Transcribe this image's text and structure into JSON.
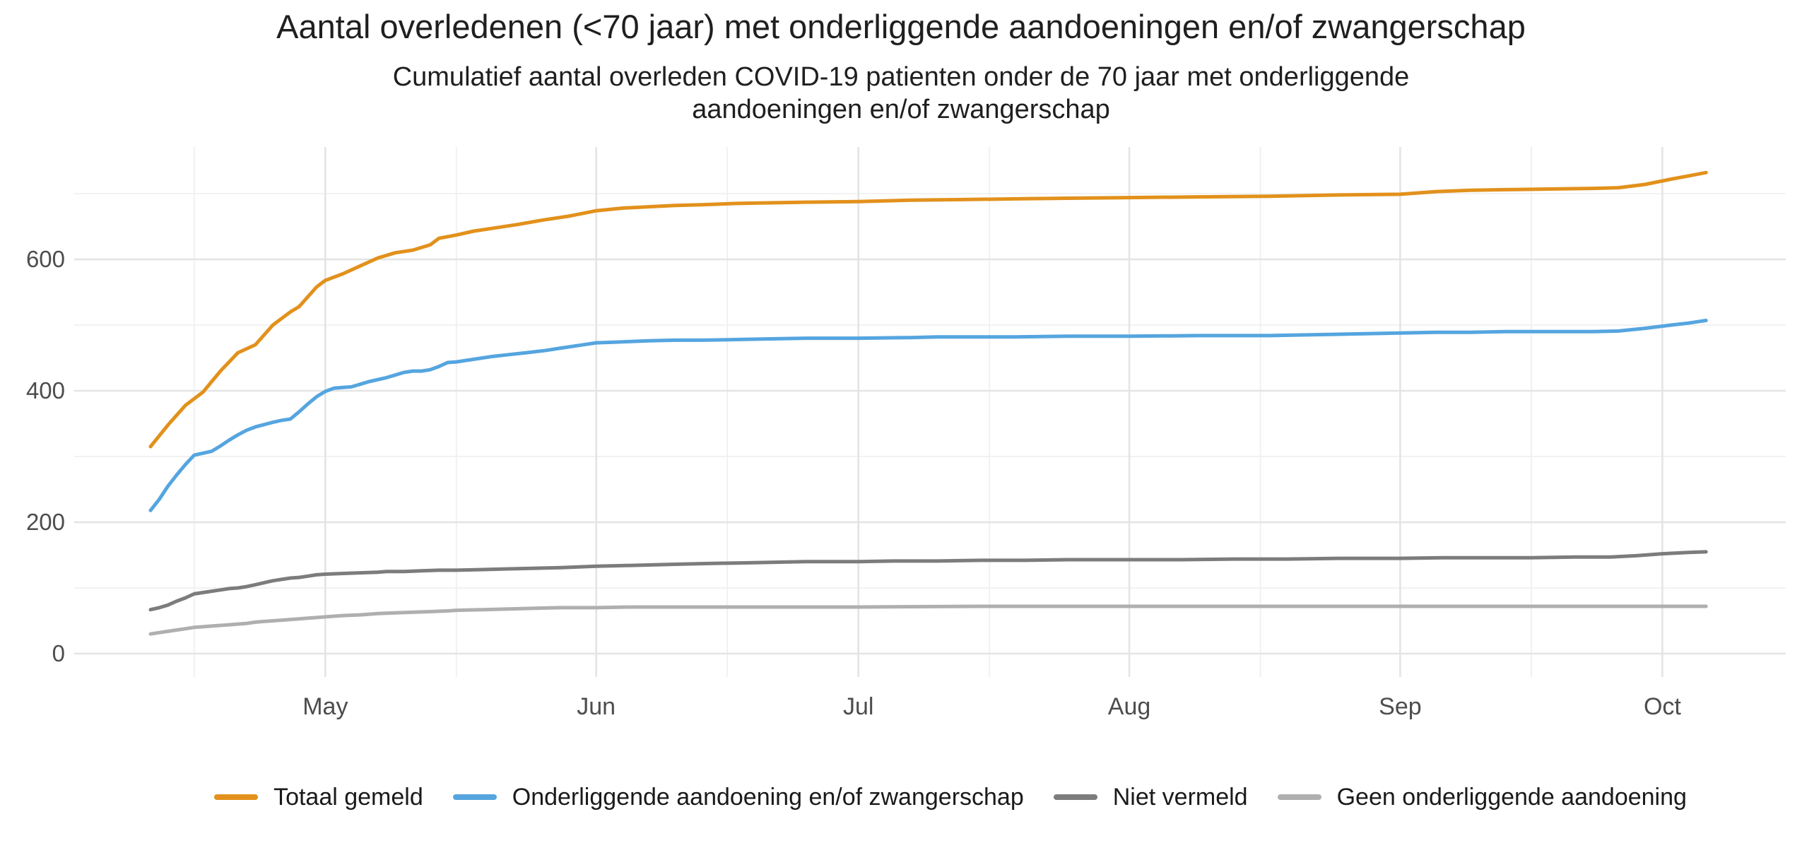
{
  "page": {
    "background": "#FFFFFF"
  },
  "title": "Aantal overledenen (<70 jaar) met onderliggende aandoeningen en/of zwangerschap",
  "subtitle_line1": "Cumulatief aantal overleden COVID-19 patienten onder de 70 jaar met onderliggende",
  "subtitle_line2": "aandoeningen en/of zwangerschap",
  "chart_data": {
    "type": "line",
    "title": "Aantal overledenen (<70 jaar) met onderliggende aandoeningen en/of zwangerschap",
    "subtitle": "Cumulatief aantal overleden COVID-19 patienten onder de 70 jaar met onderliggende aandoeningen en/of zwangerschap",
    "x_unit": "days since Apr 11",
    "x_axis": {
      "ticks": [
        {
          "label": "May",
          "day": 20
        },
        {
          "label": "Jun",
          "day": 51
        },
        {
          "label": "Jul",
          "day": 81
        },
        {
          "label": "Aug",
          "day": 112
        },
        {
          "label": "Sep",
          "day": 143
        },
        {
          "label": "Oct",
          "day": 173
        }
      ],
      "minor_days": [
        5,
        35,
        66,
        96,
        127,
        158
      ],
      "data_range_days": [
        0,
        178
      ]
    },
    "y_axis": {
      "ticks": [
        {
          "label": "0",
          "value": 0
        },
        {
          "label": "200",
          "value": 200
        },
        {
          "label": "400",
          "value": 400
        },
        {
          "label": "600",
          "value": 600
        }
      ],
      "minor_ticks": [
        100,
        300,
        500,
        700
      ],
      "range": [
        -35,
        770
      ]
    },
    "grid": {
      "major_color": "#E4E4E4",
      "minor_color": "#F0F0F0"
    },
    "legend_position": "bottom",
    "series": [
      {
        "name": "Totaal gemeld",
        "color": "#E2911C",
        "points": [
          [
            0,
            315
          ],
          [
            2,
            348
          ],
          [
            4,
            378
          ],
          [
            6,
            398
          ],
          [
            8,
            430
          ],
          [
            10,
            458
          ],
          [
            12,
            470
          ],
          [
            14,
            500
          ],
          [
            16,
            520
          ],
          [
            17,
            528
          ],
          [
            19,
            558
          ],
          [
            20,
            568
          ],
          [
            22,
            578
          ],
          [
            24,
            590
          ],
          [
            26,
            602
          ],
          [
            28,
            610
          ],
          [
            30,
            614
          ],
          [
            32,
            622
          ],
          [
            33,
            632
          ],
          [
            35,
            637
          ],
          [
            37,
            643
          ],
          [
            39,
            647
          ],
          [
            42,
            653
          ],
          [
            45,
            660
          ],
          [
            48,
            666
          ],
          [
            51,
            674
          ],
          [
            54,
            678
          ],
          [
            57,
            680
          ],
          [
            60,
            682
          ],
          [
            63,
            683
          ],
          [
            67,
            685
          ],
          [
            71,
            686
          ],
          [
            75,
            687
          ],
          [
            81,
            688
          ],
          [
            87,
            690
          ],
          [
            93,
            691
          ],
          [
            99,
            692
          ],
          [
            105,
            693
          ],
          [
            112,
            694
          ],
          [
            120,
            695
          ],
          [
            128,
            696
          ],
          [
            136,
            698
          ],
          [
            143,
            699
          ],
          [
            147,
            703
          ],
          [
            151,
            705
          ],
          [
            155,
            706
          ],
          [
            160,
            707
          ],
          [
            165,
            708
          ],
          [
            168,
            709
          ],
          [
            171,
            714
          ],
          [
            174,
            722
          ],
          [
            176,
            727
          ],
          [
            178,
            732
          ]
        ]
      },
      {
        "name": "Onderliggende aandoening en/of zwangerschap",
        "color": "#55A5DF",
        "points": [
          [
            0,
            218
          ],
          [
            1,
            235
          ],
          [
            2,
            255
          ],
          [
            3,
            272
          ],
          [
            4,
            288
          ],
          [
            5,
            302
          ],
          [
            7,
            308
          ],
          [
            8,
            316
          ],
          [
            9,
            325
          ],
          [
            10,
            333
          ],
          [
            11,
            340
          ],
          [
            12,
            345
          ],
          [
            14,
            352
          ],
          [
            15,
            355
          ],
          [
            16,
            357
          ],
          [
            17,
            368
          ],
          [
            18,
            380
          ],
          [
            19,
            391
          ],
          [
            20,
            399
          ],
          [
            21,
            404
          ],
          [
            23,
            406
          ],
          [
            24,
            410
          ],
          [
            25,
            414
          ],
          [
            27,
            420
          ],
          [
            28,
            424
          ],
          [
            29,
            428
          ],
          [
            30,
            430
          ],
          [
            31,
            430
          ],
          [
            32,
            432
          ],
          [
            33,
            437
          ],
          [
            34,
            443
          ],
          [
            35,
            444
          ],
          [
            37,
            448
          ],
          [
            39,
            452
          ],
          [
            41,
            455
          ],
          [
            43,
            458
          ],
          [
            45,
            461
          ],
          [
            47,
            465
          ],
          [
            49,
            469
          ],
          [
            51,
            473
          ],
          [
            53,
            474
          ],
          [
            55,
            475
          ],
          [
            57,
            476
          ],
          [
            60,
            477
          ],
          [
            63,
            477
          ],
          [
            67,
            478
          ],
          [
            71,
            479
          ],
          [
            75,
            480
          ],
          [
            81,
            480
          ],
          [
            87,
            481
          ],
          [
            90,
            482
          ],
          [
            99,
            482
          ],
          [
            105,
            483
          ],
          [
            112,
            483
          ],
          [
            120,
            484
          ],
          [
            128,
            484
          ],
          [
            136,
            486
          ],
          [
            143,
            488
          ],
          [
            147,
            489
          ],
          [
            151,
            489
          ],
          [
            155,
            490
          ],
          [
            165,
            490
          ],
          [
            168,
            491
          ],
          [
            171,
            495
          ],
          [
            174,
            500
          ],
          [
            176,
            503
          ],
          [
            178,
            507
          ]
        ]
      },
      {
        "name": "Niet vermeld",
        "color": "#7C7C7C",
        "points": [
          [
            0,
            67
          ],
          [
            1,
            70
          ],
          [
            2,
            74
          ],
          [
            3,
            80
          ],
          [
            4,
            85
          ],
          [
            5,
            91
          ],
          [
            6,
            93
          ],
          [
            7,
            95
          ],
          [
            8,
            97
          ],
          [
            9,
            99
          ],
          [
            10,
            100
          ],
          [
            11,
            102
          ],
          [
            12,
            105
          ],
          [
            13,
            108
          ],
          [
            14,
            111
          ],
          [
            15,
            113
          ],
          [
            16,
            115
          ],
          [
            17,
            116
          ],
          [
            18,
            118
          ],
          [
            19,
            120
          ],
          [
            20,
            121
          ],
          [
            22,
            122
          ],
          [
            24,
            123
          ],
          [
            26,
            124
          ],
          [
            27,
            125
          ],
          [
            29,
            125
          ],
          [
            31,
            126
          ],
          [
            33,
            127
          ],
          [
            35,
            127
          ],
          [
            38,
            128
          ],
          [
            41,
            129
          ],
          [
            44,
            130
          ],
          [
            47,
            131
          ],
          [
            49,
            132
          ],
          [
            51,
            133
          ],
          [
            54,
            134
          ],
          [
            57,
            135
          ],
          [
            60,
            136
          ],
          [
            63,
            137
          ],
          [
            67,
            138
          ],
          [
            71,
            139
          ],
          [
            75,
            140
          ],
          [
            81,
            140
          ],
          [
            85,
            141
          ],
          [
            90,
            141
          ],
          [
            95,
            142
          ],
          [
            100,
            142
          ],
          [
            105,
            143
          ],
          [
            112,
            143
          ],
          [
            118,
            143
          ],
          [
            124,
            144
          ],
          [
            130,
            144
          ],
          [
            136,
            145
          ],
          [
            143,
            145
          ],
          [
            148,
            146
          ],
          [
            153,
            146
          ],
          [
            158,
            146
          ],
          [
            163,
            147
          ],
          [
            167,
            147
          ],
          [
            170,
            149
          ],
          [
            173,
            152
          ],
          [
            176,
            154
          ],
          [
            178,
            155
          ]
        ]
      },
      {
        "name": "Geen onderliggende aandoening",
        "color": "#AFAFAF",
        "points": [
          [
            0,
            30
          ],
          [
            1,
            32
          ],
          [
            2,
            34
          ],
          [
            3,
            36
          ],
          [
            4,
            38
          ],
          [
            5,
            40
          ],
          [
            6,
            41
          ],
          [
            7,
            42
          ],
          [
            8,
            43
          ],
          [
            9,
            44
          ],
          [
            10,
            45
          ],
          [
            11,
            46
          ],
          [
            12,
            48
          ],
          [
            13,
            49
          ],
          [
            14,
            50
          ],
          [
            15,
            51
          ],
          [
            16,
            52
          ],
          [
            17,
            53
          ],
          [
            18,
            54
          ],
          [
            19,
            55
          ],
          [
            20,
            56
          ],
          [
            22,
            58
          ],
          [
            24,
            59
          ],
          [
            26,
            61
          ],
          [
            28,
            62
          ],
          [
            30,
            63
          ],
          [
            32,
            64
          ],
          [
            34,
            65
          ],
          [
            35,
            66
          ],
          [
            38,
            67
          ],
          [
            41,
            68
          ],
          [
            44,
            69
          ],
          [
            47,
            70
          ],
          [
            51,
            70
          ],
          [
            55,
            71
          ],
          [
            60,
            71
          ],
          [
            70,
            71
          ],
          [
            81,
            71
          ],
          [
            95,
            72
          ],
          [
            112,
            72
          ],
          [
            130,
            72
          ],
          [
            150,
            72
          ],
          [
            178,
            72
          ]
        ]
      }
    ]
  }
}
